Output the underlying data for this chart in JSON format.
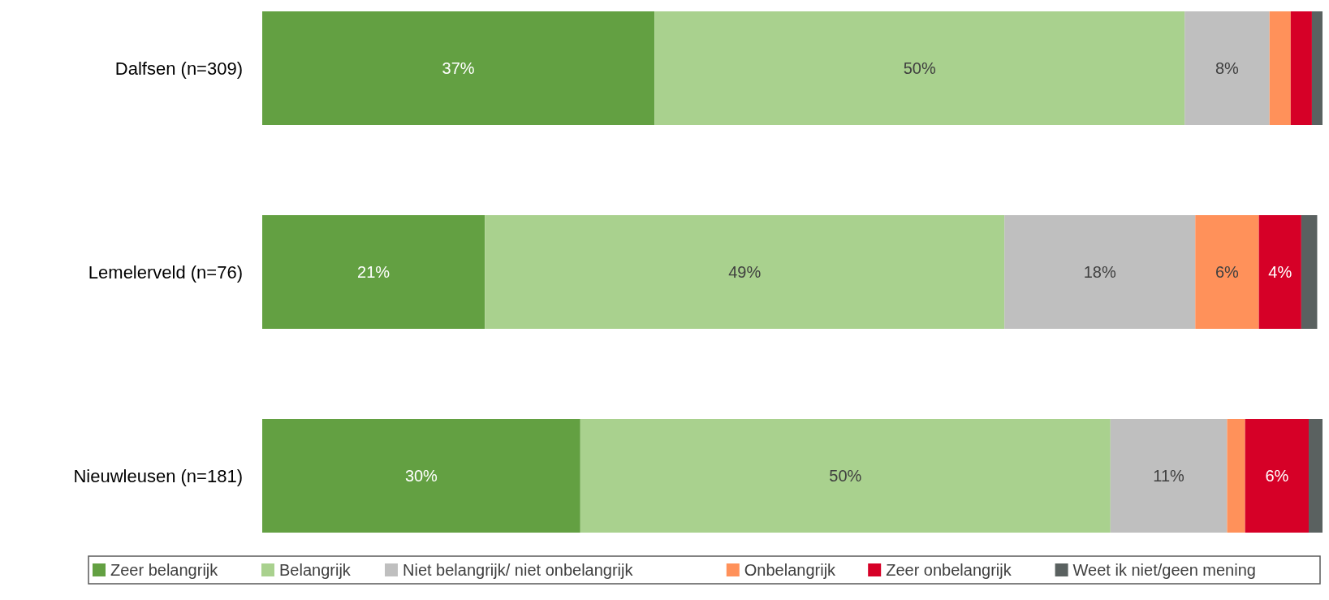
{
  "chart_data": {
    "type": "bar",
    "orientation": "horizontal",
    "stacked": true,
    "categories": [
      "Dalfsen (n=309)",
      "Lemelerveld (n=76)",
      "Nieuwleusen (n=181)"
    ],
    "xlim": [
      0,
      100
    ],
    "tick_labels": "y",
    "legend": "bottom",
    "series": [
      {
        "name": "Zeer belangrijk",
        "color": "#63a042",
        "values": [
          37,
          21,
          30
        ],
        "value_labels": [
          "37%",
          "21%",
          "30%"
        ]
      },
      {
        "name": "Belangrijk",
        "color": "#a9d18e",
        "values": [
          50,
          49,
          50
        ],
        "value_labels": [
          "50%",
          "49%",
          "50%"
        ]
      },
      {
        "name": "Niet belangrijk/ niet onbelangrijk",
        "color": "#bfbfbf",
        "values": [
          8,
          18,
          11
        ],
        "value_labels": [
          "8%",
          "18%",
          "11%"
        ]
      },
      {
        "name": "Onbelangrijk",
        "color": "#ff915a",
        "values": [
          2,
          6,
          1.7
        ],
        "value_labels": [
          null,
          "6%",
          null
        ]
      },
      {
        "name": "Zeer onbelangrijk",
        "color": "#d60027",
        "values": [
          2,
          4,
          6
        ],
        "value_labels": [
          null,
          "4%",
          "6%"
        ]
      },
      {
        "name": "Weet ik niet/geen mening",
        "color": "#5a6160",
        "values": [
          1,
          1.5,
          1.3
        ],
        "value_labels": [
          null,
          null,
          null
        ]
      }
    ]
  }
}
